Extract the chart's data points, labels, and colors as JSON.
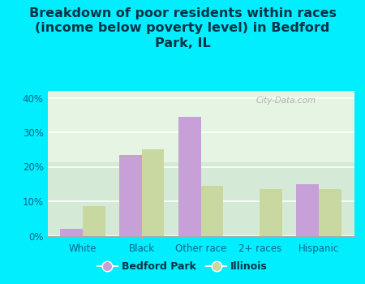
{
  "title": "Breakdown of poor residents within races\n(income below poverty level) in Bedford\nPark, IL",
  "categories": [
    "White",
    "Black",
    "Other race",
    "2+ races",
    "Hispanic"
  ],
  "bedford_park": [
    2.0,
    23.5,
    34.5,
    0.0,
    15.0
  ],
  "illinois": [
    8.5,
    25.0,
    14.5,
    13.5,
    13.5
  ],
  "bedford_color": "#c8a0d8",
  "illinois_color": "#c8d8a0",
  "background_outer": "#00eeff",
  "background_inner_top": "#f0f8ee",
  "background_inner_bottom": "#d8eccc",
  "ylim": [
    0,
    42
  ],
  "yticks": [
    0,
    10,
    20,
    30,
    40
  ],
  "ytick_labels": [
    "0%",
    "10%",
    "20%",
    "30%",
    "40%"
  ],
  "title_fontsize": 11.5,
  "legend_labels": [
    "Bedford Park",
    "Illinois"
  ],
  "bar_width": 0.38,
  "watermark": "City-Data.com"
}
